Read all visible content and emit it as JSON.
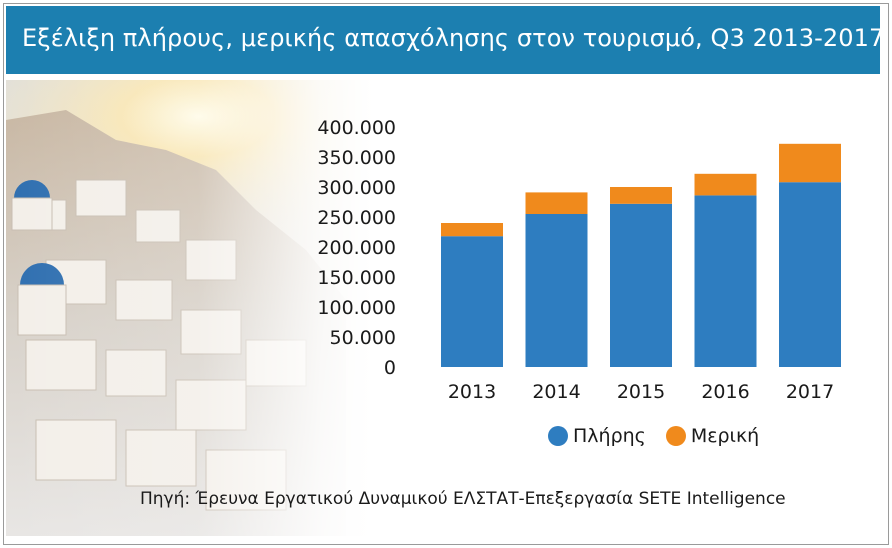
{
  "header": {
    "title": "Εξέλιξη πλήρους, μερικής απασχόλησης στον τουρισμό, Q3 2013-2017"
  },
  "source": "Πηγή: Έρευνα Εργατικού Δυναμικού ΕΛΣΤΑΤ-Επεξεργασία SETE Intelligence",
  "colors": {
    "header": "#1c7fb0",
    "full": "#2e7dc0",
    "partial": "#f08a1c"
  },
  "chart_data": {
    "type": "bar",
    "stacked": true,
    "categories": [
      "2013",
      "2014",
      "2015",
      "2016",
      "2017"
    ],
    "series": [
      {
        "name": "Πλήρης",
        "values": [
          218000,
          255000,
          272000,
          286000,
          308000
        ]
      },
      {
        "name": "Μερική",
        "values": [
          22000,
          36000,
          28000,
          36000,
          64000
        ]
      }
    ],
    "ylim": [
      0,
      400000
    ],
    "yticks": [
      "0",
      "50.000",
      "100.000",
      "150.000",
      "200.000",
      "250.000",
      "300.000",
      "350.000",
      "400.000"
    ],
    "grid": false,
    "legend": "bottom",
    "title": "",
    "xlabel": "",
    "ylabel": ""
  }
}
